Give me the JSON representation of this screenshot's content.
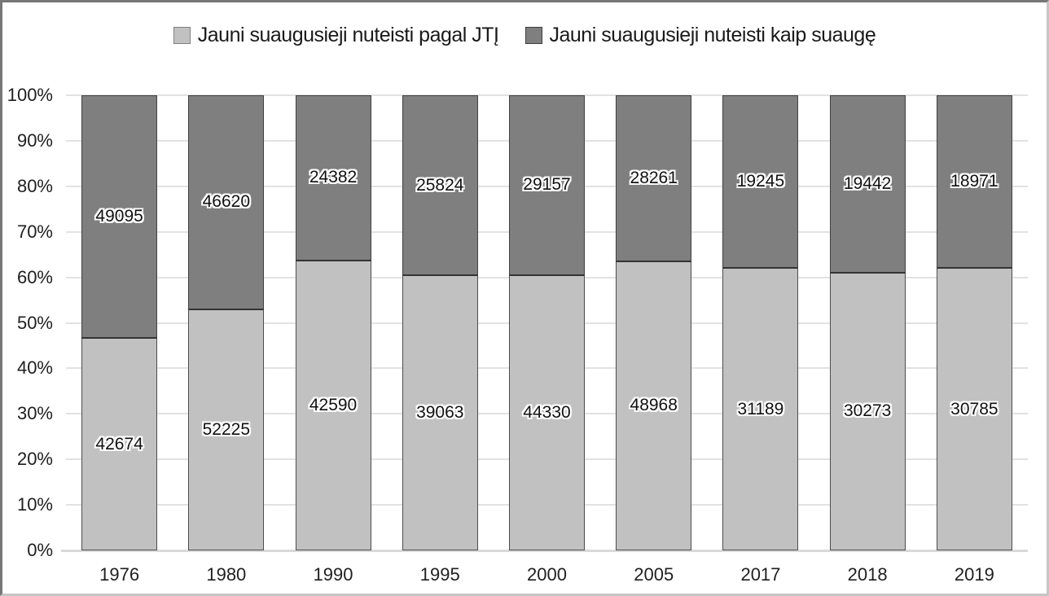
{
  "chart_data": {
    "type": "bar",
    "stacked": true,
    "percent_stacked": true,
    "title": "",
    "xlabel": "",
    "ylabel": "",
    "categories": [
      "1976",
      "1980",
      "1990",
      "1995",
      "2000",
      "2005",
      "2017",
      "2018",
      "2019"
    ],
    "series": [
      {
        "name": "Jauni suaugusieji nuteisti pagal JTĮ",
        "color": "#c1c1c1",
        "values": [
          42674,
          52225,
          42590,
          39063,
          44330,
          48968,
          31189,
          30273,
          30785
        ]
      },
      {
        "name": "Jauni suaugusieji nuteisti kaip suaugę",
        "color": "#7f7f7f",
        "values": [
          49095,
          46620,
          24382,
          25824,
          29157,
          28261,
          19245,
          19442,
          18971
        ]
      }
    ],
    "y_axis": {
      "min": 0,
      "max": 100,
      "tick_labels": [
        "0%",
        "10%",
        "20%",
        "30%",
        "40%",
        "50%",
        "60%",
        "70%",
        "80%",
        "90%",
        "100%"
      ]
    },
    "gridlines": true,
    "legend_position": "top",
    "data_labels": "centered-in-segment"
  },
  "colors": {
    "series_light": "#c1c1c1",
    "series_dark": "#7f7f7f",
    "gridline": "#e2e2e2",
    "axis_line": "#d9d9d9",
    "text": "#1f1f1f",
    "segment_border": "#404040"
  }
}
